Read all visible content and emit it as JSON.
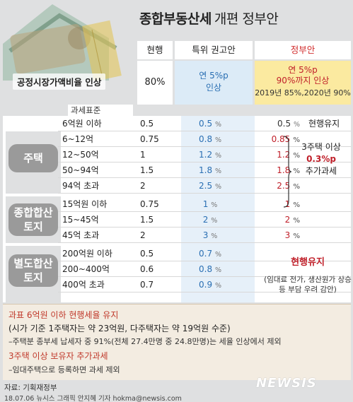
{
  "title": {
    "bold": "종합부동산세",
    "light": "개편 정부안"
  },
  "headers": {
    "current": "현행",
    "taskforce": "특위 권고안",
    "government": "정부안"
  },
  "fmv": {
    "label": "공정시장가액비율 인상",
    "current": "80%",
    "taskforce_line1": "연 5%p",
    "taskforce_line2": "인상",
    "gov_line1": "연 5%p",
    "gov_line2": "90%까지 인상",
    "gov_line3": "2019년 85%,2020년 90%"
  },
  "tax_standard_label": "과세표준",
  "categories": {
    "housing": "주택",
    "comprehensive_line1": "종합합산",
    "comprehensive_line2": "토지",
    "separate_line1": "별도합산",
    "separate_line2": "토지"
  },
  "rows": [
    {
      "std": "6억원 이하",
      "cur": "0.5",
      "tf": "0.5",
      "gov": "0.5",
      "note": "현행유지",
      "red": false
    },
    {
      "std": "6~12억",
      "cur": "0.75",
      "tf": "0.8",
      "gov": "0.85",
      "note": "",
      "red": true
    },
    {
      "std": "12~50억",
      "cur": "1",
      "tf": "1.2",
      "gov": "1.2",
      "note": "",
      "red": true
    },
    {
      "std": "50~94억",
      "cur": "1.5",
      "tf": "1.8",
      "gov": "1.8",
      "note": "",
      "red": true
    },
    {
      "std": "94억 초과",
      "cur": "2",
      "tf": "2.5",
      "gov": "2.5",
      "note": "",
      "red": true
    },
    {
      "std": "15억원 이하",
      "cur": "0.75",
      "tf": "1",
      "gov": "1",
      "note": "",
      "red": true
    },
    {
      "std": "15~45억",
      "cur": "1.5",
      "tf": "2",
      "gov": "2",
      "note": "",
      "red": true
    },
    {
      "std": "45억 초과",
      "cur": "2",
      "tf": "3",
      "gov": "3",
      "note": "",
      "red": true
    },
    {
      "std": "200억원 이하",
      "cur": "0.5",
      "tf": "0.7",
      "gov": "",
      "note": "",
      "red": false
    },
    {
      "std": "200~400억",
      "cur": "0.6",
      "tf": "0.8",
      "gov": "",
      "note": "",
      "red": false
    },
    {
      "std": "400억 초과",
      "cur": "0.7",
      "tf": "0.9",
      "gov": "",
      "note": "",
      "red": false
    }
  ],
  "percent_sign": "%",
  "multi_home_note": {
    "line1": "3주택 이상",
    "line2": "0.3%p",
    "line3": "추가과세"
  },
  "separate_note": {
    "keep": "현행유지",
    "line1": "(임대료 전가, 생산원가 상승",
    "line2": "등 부담 우려 감안)"
  },
  "footer": {
    "line1": "과표 6억원 이하 현행세율 유지",
    "line2": "(시가 기준 1주택자는 약 23억원, 다주택자는 약 19억원 수준)",
    "line3": "–주택분 종부세 납세자 중 91%(전체 27.4만명 중 24.8만명)는 세율 인상에서 제외",
    "line4": "3주택 이상 보유자 추가과세",
    "line5": "–임대주택으로 등록하면 과세 제외"
  },
  "source": "자료: 기획재정부",
  "credit": "18.07.06 뉴시스 그래픽 안지혜 기자 hokma@newsis.com",
  "logo": "NEWSIS",
  "colors": {
    "red": "#c0202a",
    "blue": "#2a6fb3",
    "gov_bg": "#fbeaa0",
    "tf_bg": "#dcebf7",
    "footer_bg": "#f3ece1"
  }
}
